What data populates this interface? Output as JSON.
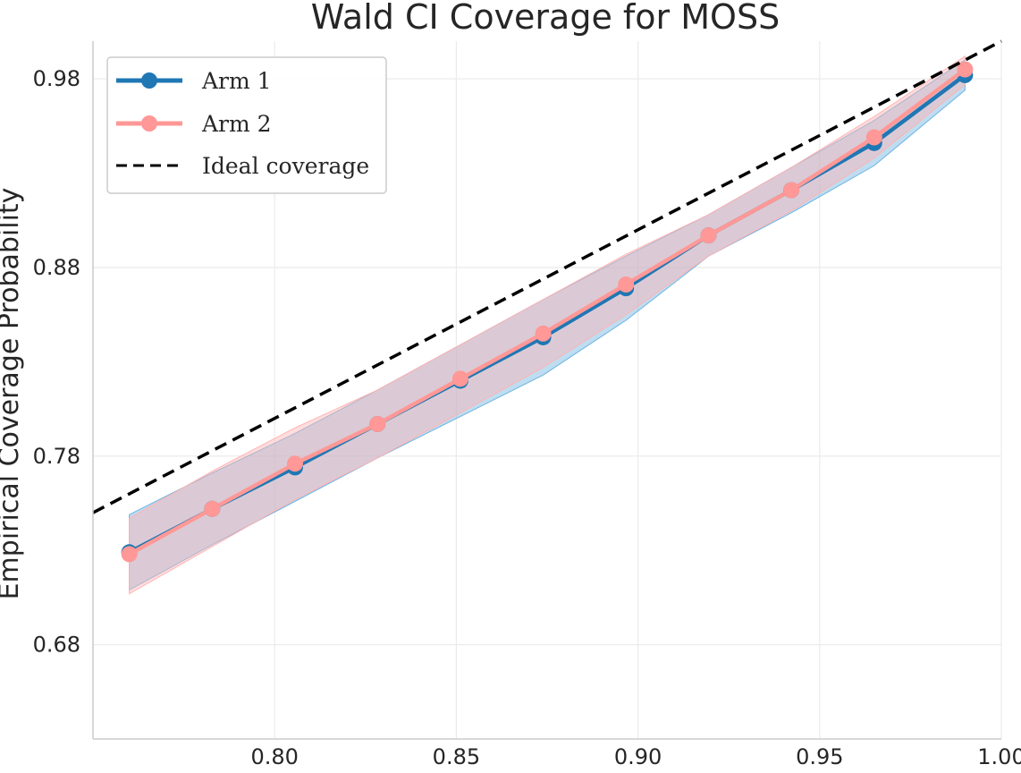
{
  "chart_data": {
    "type": "line",
    "title": "Wald CI Coverage for MOSS",
    "xlabel": "",
    "ylabel": "Empirical Coverage Probability",
    "xlim": [
      0.75,
      1.0
    ],
    "ylim": [
      0.63,
      1.0
    ],
    "xticks": [
      0.8,
      0.85,
      0.9,
      0.95,
      1.0
    ],
    "xtick_labels": [
      "0.80",
      "0.85",
      "0.90",
      "0.95",
      "1.00"
    ],
    "yticks": [
      0.68,
      0.78,
      0.88,
      0.98
    ],
    "ytick_labels": [
      "0.68",
      "0.78",
      "0.88",
      "0.98"
    ],
    "grid": true,
    "legend_position": "top-left",
    "series": [
      {
        "name": "Arm 1",
        "color": "#1f77b4",
        "band_color": "#6fb3e0",
        "x": [
          0.76,
          0.7828,
          0.8056,
          0.8283,
          0.8511,
          0.8739,
          0.8967,
          0.9194,
          0.9422,
          0.965,
          0.99
        ],
        "y": [
          0.729,
          0.752,
          0.774,
          0.797,
          0.82,
          0.843,
          0.869,
          0.897,
          0.921,
          0.946,
          0.982
        ],
        "lower": [
          0.709,
          0.733,
          0.756,
          0.779,
          0.801,
          0.823,
          0.852,
          0.886,
          0.909,
          0.934,
          0.974
        ],
        "upper": [
          0.749,
          0.771,
          0.792,
          0.815,
          0.839,
          0.863,
          0.886,
          0.908,
          0.933,
          0.958,
          0.99
        ]
      },
      {
        "name": "Arm 2",
        "color": "#ff9896",
        "band_color": "#ffb3b3",
        "x": [
          0.76,
          0.7828,
          0.8056,
          0.8283,
          0.8511,
          0.8739,
          0.8967,
          0.9194,
          0.9422,
          0.965,
          0.99
        ],
        "y": [
          0.728,
          0.752,
          0.776,
          0.797,
          0.821,
          0.845,
          0.871,
          0.897,
          0.921,
          0.949,
          0.985
        ],
        "lower": [
          0.707,
          0.732,
          0.757,
          0.779,
          0.803,
          0.827,
          0.855,
          0.886,
          0.91,
          0.938,
          0.977
        ],
        "upper": [
          0.747,
          0.772,
          0.795,
          0.815,
          0.839,
          0.863,
          0.887,
          0.908,
          0.933,
          0.96,
          0.992
        ]
      },
      {
        "name": "Ideal coverage",
        "color": "#000000",
        "style": "dashed",
        "x": [
          0.75,
          1.0
        ],
        "y": [
          0.75,
          1.0
        ]
      }
    ]
  }
}
